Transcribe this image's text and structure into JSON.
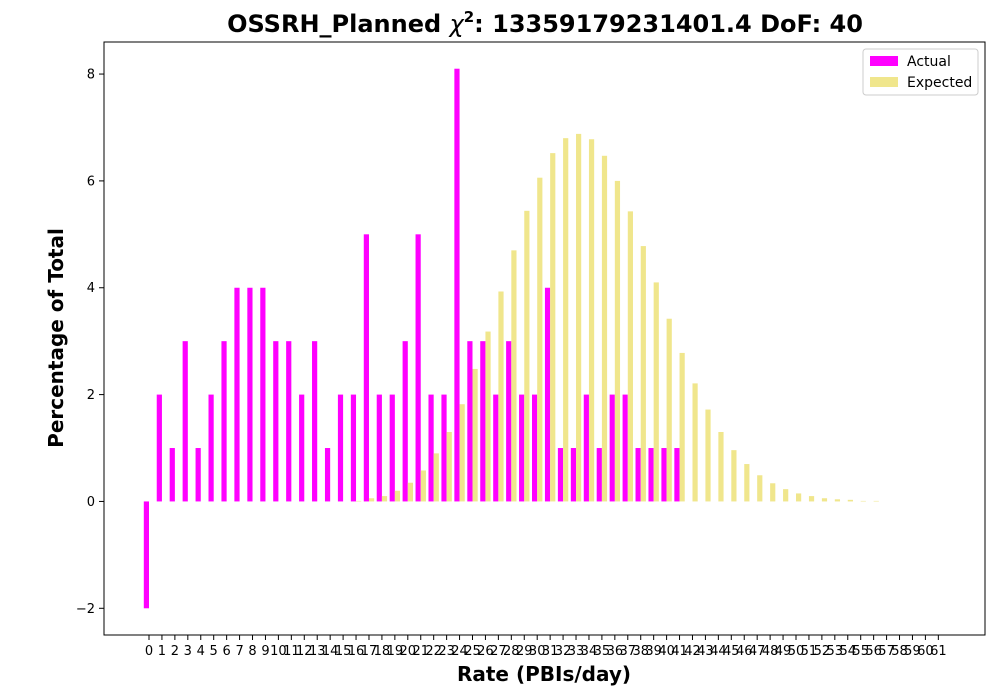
{
  "chart_data": {
    "type": "bar",
    "title_main": "OSSRH_Planned ",
    "title_chi": "χ",
    "title_sup": "2",
    "title_rest": ": 13359179231401.4 DoF: 40",
    "xlabel": "Rate (PBIs/day)",
    "ylabel": "Percentage of Total",
    "ylim": [
      -2.5,
      8.6
    ],
    "yticks": [
      -2,
      0,
      2,
      4,
      6,
      8
    ],
    "ytick_labels": [
      "−2",
      "0",
      "2",
      "4",
      "6",
      "8"
    ],
    "legend_position": "top-right",
    "grid": false,
    "categories": [
      "0",
      "1",
      "2",
      "3",
      "4",
      "5",
      "6",
      "7",
      "8",
      "9",
      "10",
      "11",
      "12",
      "13",
      "14",
      "15",
      "16",
      "17",
      "18",
      "19",
      "20",
      "21",
      "22",
      "23",
      "24",
      "25",
      "26",
      "27",
      "28",
      "29",
      "30",
      "31",
      "32",
      "33",
      "34",
      "35",
      "36",
      "37",
      "38",
      "39",
      "40",
      "41",
      "42",
      "43",
      "44",
      "45",
      "46",
      "47",
      "48",
      "49",
      "50",
      "51",
      "52",
      "53",
      "54",
      "55",
      "56",
      "57",
      "58",
      "59",
      "60",
      "61"
    ],
    "series": [
      {
        "name": "Actual",
        "color": "#ff00ff",
        "values": [
          -2,
          2,
          1,
          3,
          1,
          2,
          3,
          4,
          4,
          4,
          3,
          3,
          2,
          3,
          1,
          2,
          2,
          5,
          2,
          2,
          3,
          5,
          2,
          2,
          8.1,
          3,
          3,
          2,
          3,
          2,
          2,
          4,
          1,
          1,
          2,
          1,
          2,
          2,
          1,
          1,
          1,
          1,
          0,
          0,
          0,
          0,
          0,
          0,
          0,
          0,
          0,
          0,
          0,
          0,
          0,
          0,
          0,
          0,
          0,
          0,
          0,
          0
        ]
      },
      {
        "name": "Expected",
        "color": "#f0e68c",
        "values": [
          0,
          0,
          0,
          0,
          0,
          0,
          0,
          0,
          0,
          0,
          0,
          0,
          0,
          0,
          0,
          0,
          0.01,
          0.06,
          0.1,
          0.2,
          0.35,
          0.58,
          0.9,
          1.3,
          1.82,
          2.48,
          3.18,
          3.93,
          4.7,
          5.44,
          6.06,
          6.52,
          6.8,
          6.88,
          6.78,
          6.47,
          6.0,
          5.43,
          4.78,
          4.1,
          3.42,
          2.78,
          2.21,
          1.72,
          1.3,
          0.96,
          0.7,
          0.49,
          0.34,
          0.23,
          0.15,
          0.1,
          0.06,
          0.04,
          0.03,
          0.01,
          0.01,
          0,
          0,
          0,
          0,
          0
        ]
      }
    ]
  }
}
